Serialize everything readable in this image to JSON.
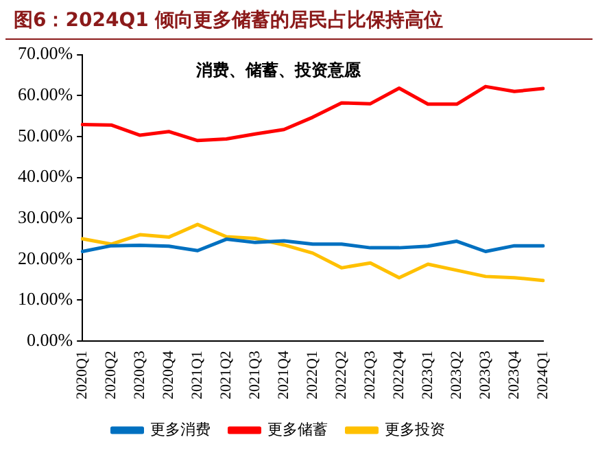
{
  "chart_data": {
    "type": "line",
    "title": "图6：2024Q1 倾向更多储蓄的居民占比保持高位",
    "subtitle": "消费、储蓄、投资意愿",
    "categories": [
      "2020Q1",
      "2020Q2",
      "2020Q3",
      "2020Q4",
      "2021Q1",
      "2021Q2",
      "2021Q3",
      "2021Q4",
      "2022Q1",
      "2022Q2",
      "2022Q3",
      "2022Q4",
      "2023Q1",
      "2023Q2",
      "2023Q3",
      "2023Q4",
      "2024Q1"
    ],
    "series": [
      {
        "name": "更多消费",
        "color": "#0070c0",
        "values": [
          21.9,
          23.3,
          23.4,
          23.2,
          22.1,
          24.9,
          24.1,
          24.5,
          23.7,
          23.7,
          22.8,
          22.8,
          23.2,
          24.4,
          21.9,
          23.3,
          23.3
        ]
      },
      {
        "name": "更多储蓄",
        "color": "#ff0000",
        "values": [
          52.9,
          52.8,
          50.3,
          51.2,
          49.0,
          49.4,
          50.6,
          51.7,
          54.7,
          58.2,
          58.0,
          61.8,
          57.9,
          57.9,
          62.2,
          61.0,
          61.7
        ]
      },
      {
        "name": "更多投资",
        "color": "#ffc000",
        "values": [
          25.0,
          23.7,
          26.0,
          25.4,
          28.5,
          25.5,
          25.1,
          23.5,
          21.5,
          17.9,
          19.1,
          15.5,
          18.8,
          17.3,
          15.8,
          15.5,
          14.8
        ]
      }
    ],
    "ylim": [
      0,
      70
    ],
    "yticks": [
      {
        "value": 0,
        "label": "0.00%"
      },
      {
        "value": 10,
        "label": "10.00%"
      },
      {
        "value": 20,
        "label": "20.00%"
      },
      {
        "value": 30,
        "label": "30.00%"
      },
      {
        "value": 40,
        "label": "40.00%"
      },
      {
        "value": 50,
        "label": "50.00%"
      },
      {
        "value": 60,
        "label": "60.00%"
      },
      {
        "value": 70,
        "label": "70.00%"
      }
    ],
    "grid": false,
    "legend": "bottom",
    "marker": "none",
    "line_style": "solid"
  }
}
